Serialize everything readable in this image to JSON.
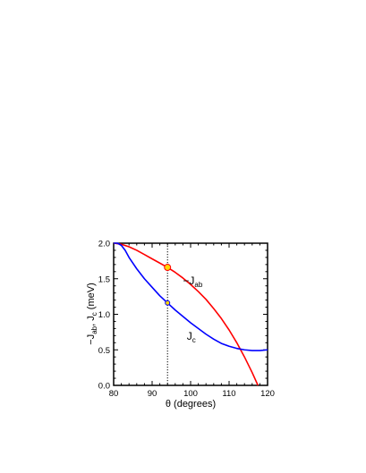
{
  "chart_data": {
    "type": "line",
    "xlabel": "θ (degrees)",
    "ylabel": {
      "main": "−J",
      "sub1": "ab",
      "mid": ", J",
      "sub2": "c",
      "tail": " (meV)"
    },
    "xlim": [
      80,
      120
    ],
    "ylim": [
      0.0,
      2.0
    ],
    "x_ticks": [
      "80",
      "90",
      "100",
      "110",
      "120"
    ],
    "y_ticks": [
      "0.0",
      "0.5",
      "1.0",
      "1.5",
      "2.0"
    ],
    "grid": false,
    "reference_line": {
      "x": 94,
      "style": "dotted"
    },
    "series": [
      {
        "label_main": "−J",
        "label_sub": "ab",
        "color": "#ff0000",
        "x": [
          80,
          82,
          84,
          86,
          88,
          90,
          92,
          94,
          96,
          98,
          100,
          102,
          104,
          106,
          108,
          110,
          112,
          114,
          116,
          117.5
        ],
        "y": [
          2.0,
          1.985,
          1.95,
          1.9,
          1.84,
          1.78,
          1.72,
          1.66,
          1.59,
          1.51,
          1.42,
          1.32,
          1.21,
          1.08,
          0.94,
          0.78,
          0.6,
          0.4,
          0.18,
          0.0
        ],
        "marker": {
          "x": 94,
          "y": 1.66,
          "fill": "#ffd700"
        },
        "label_at": {
          "x": 98,
          "y": 1.42
        }
      },
      {
        "label_main": "J",
        "label_sub": "c",
        "color": "#0000ff",
        "x": [
          80,
          81,
          82,
          83,
          84,
          86,
          88,
          90,
          92,
          94,
          96,
          98,
          100,
          102,
          104,
          106,
          108,
          110,
          112,
          114,
          116,
          118,
          120
        ],
        "y": [
          2.0,
          2.0,
          1.97,
          1.9,
          1.8,
          1.64,
          1.5,
          1.38,
          1.26,
          1.16,
          1.06,
          0.97,
          0.88,
          0.8,
          0.72,
          0.65,
          0.59,
          0.55,
          0.52,
          0.5,
          0.49,
          0.49,
          0.5
        ],
        "marker": {
          "x": 94,
          "y": 1.16,
          "fill": "#ffd700"
        },
        "label_at": {
          "x": 99,
          "y": 0.64
        }
      }
    ]
  }
}
